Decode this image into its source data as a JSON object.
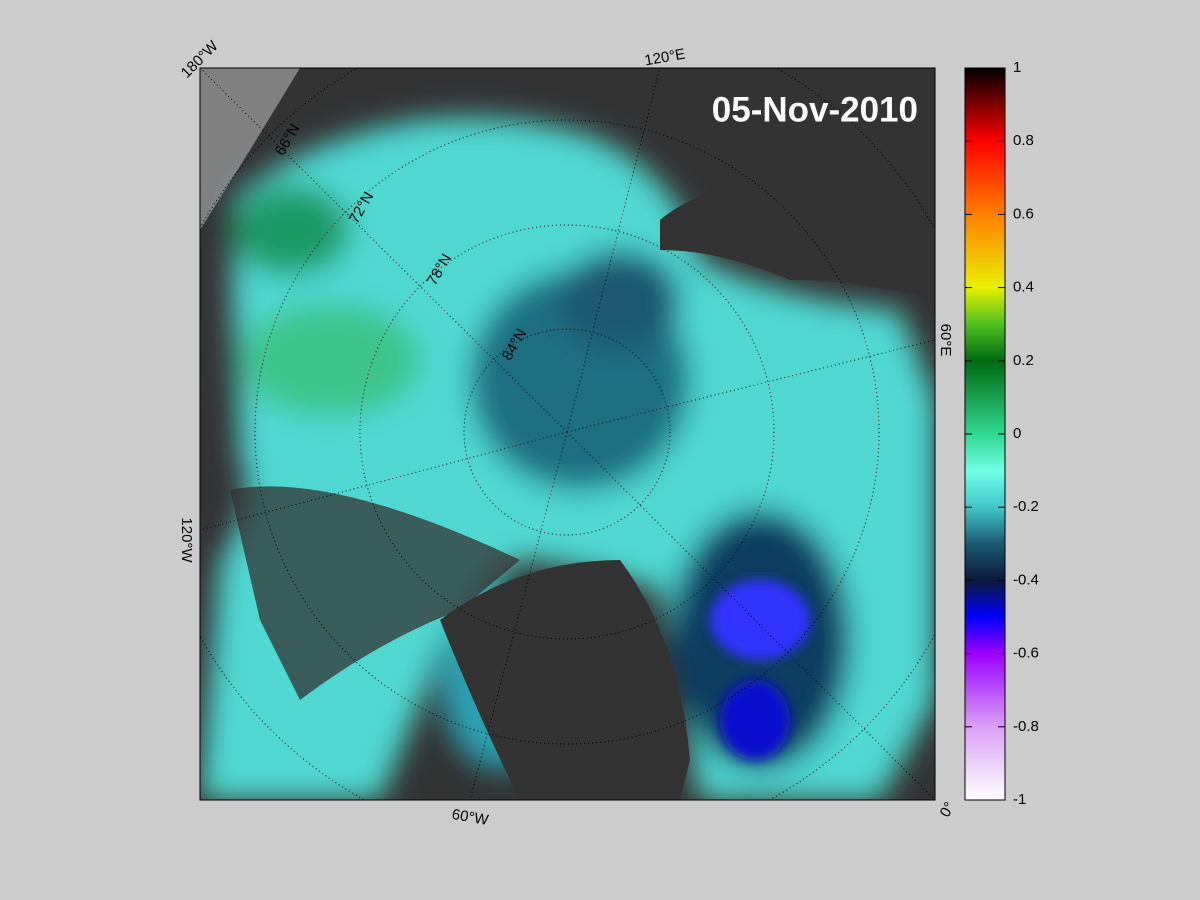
{
  "title": "05-Nov-2010",
  "map": {
    "longitude_labels": [
      "180°W",
      "120°E",
      "60°E",
      "0°",
      "60°W",
      "120°W"
    ],
    "latitude_labels": [
      "66°N",
      "72°N",
      "78°N",
      "84°N"
    ]
  },
  "colorbar": {
    "lim": [
      -1,
      1
    ],
    "ticks": [
      1,
      0.8,
      0.6,
      0.4,
      0.2,
      0,
      -0.2,
      -0.4,
      -0.6,
      -0.8,
      -1
    ]
  }
}
